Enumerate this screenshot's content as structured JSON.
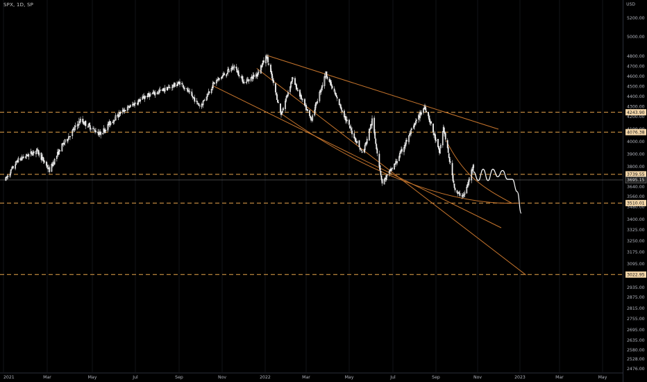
{
  "header": {
    "symbol_line": "SPX, 1D, SP",
    "currency": "USD"
  },
  "chart_data": {
    "type": "candlestick",
    "symbol": "SPX",
    "interval": "1D",
    "exchange": "SP",
    "currency": "USD",
    "x_ticks": [
      "2021",
      "Mar",
      "May",
      "Jul",
      "Sep",
      "Nov",
      "2022",
      "Mar",
      "May",
      "Jul",
      "Sep",
      "Nov",
      "2023",
      "Mar",
      "May"
    ],
    "y_ticks": [
      "5200.00",
      "5000.00",
      "4800.00",
      "4700.00",
      "4600.00",
      "4500.00",
      "4400.00",
      "4300.00",
      "4200.00",
      "4100.00",
      "4000.00",
      "3900.00",
      "3800.00",
      "3640.00",
      "3560.00",
      "3480.00",
      "3400.00",
      "3325.00",
      "3250.00",
      "3175.00",
      "3095.00",
      "2935.00",
      "2875.00",
      "2815.00",
      "2755.00",
      "2695.00",
      "2635.00",
      "2580.00",
      "2528.00",
      "2476.00"
    ],
    "price_labels": [
      {
        "label": "4243.90",
        "value": 4243.9,
        "style": "dashed"
      },
      {
        "label": "4076.38",
        "value": 4076.38,
        "style": "dashed"
      },
      {
        "label": "3739.55",
        "value": 3739.55,
        "style": "dashed"
      },
      {
        "label": "3695.15",
        "value": 3695.15,
        "style": "solid"
      },
      {
        "label": "3510.01",
        "value": 3510.01,
        "style": "dashed"
      },
      {
        "label": "3022.95",
        "value": 3022.95,
        "style": "dashed"
      }
    ],
    "price_path": [
      [
        "2021-01-04",
        3700
      ],
      [
        "2021-01-20",
        3850
      ],
      [
        "2021-02-15",
        3930
      ],
      [
        "2021-03-04",
        3770
      ],
      [
        "2021-03-20",
        3960
      ],
      [
        "2021-04-15",
        4170
      ],
      [
        "2021-05-12",
        4060
      ],
      [
        "2021-06-10",
        4240
      ],
      [
        "2021-07-15",
        4400
      ],
      [
        "2021-08-15",
        4480
      ],
      [
        "2021-09-03",
        4540
      ],
      [
        "2021-10-01",
        4300
      ],
      [
        "2021-10-20",
        4530
      ],
      [
        "2021-11-18",
        4700
      ],
      [
        "2021-12-02",
        4540
      ],
      [
        "2021-12-20",
        4620
      ],
      [
        "2022-01-03",
        4800
      ],
      [
        "2022-01-24",
        4220
      ],
      [
        "2022-02-09",
        4580
      ],
      [
        "2022-03-08",
        4170
      ],
      [
        "2022-03-29",
        4630
      ],
      [
        "2022-04-26",
        4180
      ],
      [
        "2022-05-20",
        3900
      ],
      [
        "2022-06-02",
        4170
      ],
      [
        "2022-06-16",
        3670
      ],
      [
        "2022-07-05",
        3830
      ],
      [
        "2022-08-16",
        4300
      ],
      [
        "2022-09-06",
        3910
      ],
      [
        "2022-09-12",
        4110
      ],
      [
        "2022-09-30",
        3585
      ],
      [
        "2022-10-12",
        3570
      ],
      [
        "2022-10-20",
        3700
      ],
      [
        "2022-10-26",
        3830
      ]
    ],
    "projection_path": [
      [
        "2022-10-26",
        3760
      ],
      [
        "2022-11-02",
        3690
      ],
      [
        "2022-11-09",
        3780
      ],
      [
        "2022-11-16",
        3690
      ],
      [
        "2022-11-23",
        3780
      ],
      [
        "2022-11-30",
        3720
      ],
      [
        "2022-12-07",
        3770
      ],
      [
        "2022-12-14",
        3700
      ],
      [
        "2022-12-21",
        3700
      ],
      [
        "2022-12-28",
        3600
      ],
      [
        "2023-01-03",
        3440
      ]
    ],
    "trend_lines": [
      {
        "from": [
          "2022-01-03",
          4810
        ],
        "to": [
          "2022-12-01",
          4100
        ]
      },
      {
        "from": [
          "2021-10-18",
          4510
        ],
        "to": [
          "2022-12-05",
          3340
        ]
      },
      {
        "from": [
          "2021-12-20",
          4680
        ],
        "to": [
          "2023-01-10",
          3020
        ]
      }
    ],
    "curved_lines": [
      {
        "points": [
          [
            "2022-01-24",
            4230
          ],
          [
            "2022-06-15",
            3660
          ],
          [
            "2022-10-12",
            3490
          ],
          [
            "2023-01-01",
            3510
          ]
        ]
      },
      {
        "points": [
          [
            "2022-09-16",
            4010
          ],
          [
            "2022-10-12",
            3720
          ],
          [
            "2022-11-10",
            3630
          ],
          [
            "2022-12-20",
            3510
          ]
        ]
      }
    ]
  }
}
